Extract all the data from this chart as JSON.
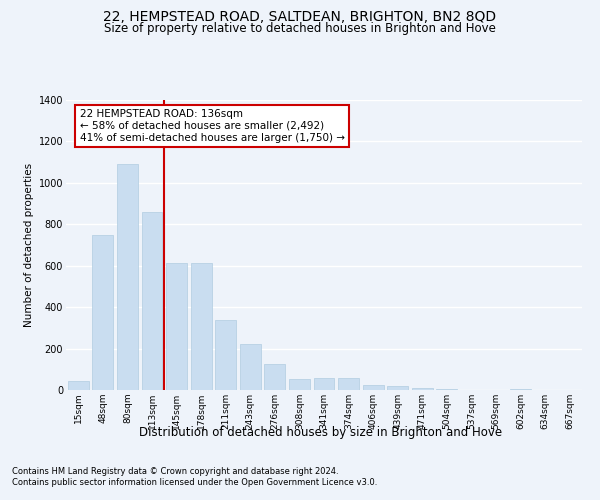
{
  "title1": "22, HEMPSTEAD ROAD, SALTDEAN, BRIGHTON, BN2 8QD",
  "title2": "Size of property relative to detached houses in Brighton and Hove",
  "xlabel": "Distribution of detached houses by size in Brighton and Hove",
  "ylabel": "Number of detached properties",
  "categories": [
    "15sqm",
    "48sqm",
    "80sqm",
    "113sqm",
    "145sqm",
    "178sqm",
    "211sqm",
    "243sqm",
    "276sqm",
    "308sqm",
    "341sqm",
    "374sqm",
    "406sqm",
    "439sqm",
    "471sqm",
    "504sqm",
    "537sqm",
    "569sqm",
    "602sqm",
    "634sqm",
    "667sqm"
  ],
  "values": [
    45,
    750,
    1090,
    860,
    615,
    615,
    340,
    220,
    125,
    55,
    58,
    58,
    25,
    18,
    10,
    5,
    2,
    0,
    5,
    0,
    2
  ],
  "bar_color": "#c9ddf0",
  "bar_edge_color": "#b0cce0",
  "vline_pos": 3.5,
  "vline_color": "#cc0000",
  "annotation_line1": "22 HEMPSTEAD ROAD: 136sqm",
  "annotation_line2": "← 58% of detached houses are smaller (2,492)",
  "annotation_line3": "41% of semi-detached houses are larger (1,750) →",
  "ylim_max": 1400,
  "yticks": [
    0,
    200,
    400,
    600,
    800,
    1000,
    1200,
    1400
  ],
  "footnote1": "Contains HM Land Registry data © Crown copyright and database right 2024.",
  "footnote2": "Contains public sector information licensed under the Open Government Licence v3.0.",
  "bg_color": "#eef3fa",
  "grid_color": "#ffffff",
  "title1_fontsize": 10,
  "title2_fontsize": 8.5,
  "ylabel_fontsize": 7.5,
  "xlabel_fontsize": 8.5,
  "tick_fontsize": 6.5,
  "annot_fontsize": 7.5,
  "footnote_fontsize": 6.0
}
